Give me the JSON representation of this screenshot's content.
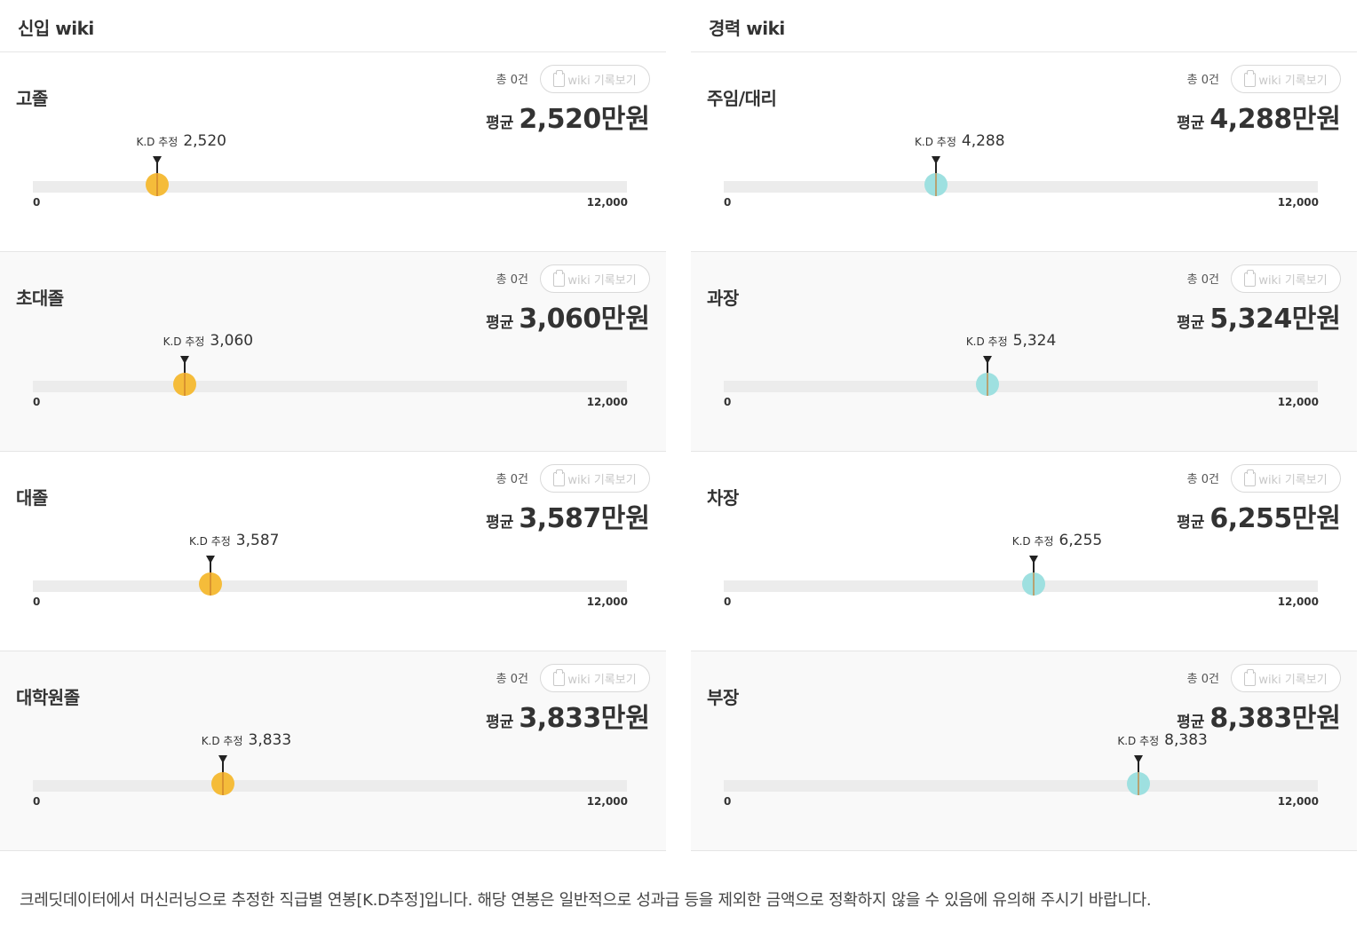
{
  "columns": [
    {
      "title": "신입 wiki",
      "dot_color": "#f5bc3a",
      "cards": [
        {
          "title": "고졸",
          "count": "총 0건",
          "button": "wiki 기록보기",
          "avg_label": "평균",
          "avg_value": "2,520",
          "avg_unit": "만원",
          "kd_label": "K.D 추정",
          "kd_value": "2,520",
          "kd_number": 2520,
          "scale_min": "0",
          "scale_max": "12,000"
        },
        {
          "title": "초대졸",
          "count": "총 0건",
          "button": "wiki 기록보기",
          "avg_label": "평균",
          "avg_value": "3,060",
          "avg_unit": "만원",
          "kd_label": "K.D 추정",
          "kd_value": "3,060",
          "kd_number": 3060,
          "scale_min": "0",
          "scale_max": "12,000"
        },
        {
          "title": "대졸",
          "count": "총 0건",
          "button": "wiki 기록보기",
          "avg_label": "평균",
          "avg_value": "3,587",
          "avg_unit": "만원",
          "kd_label": "K.D 추정",
          "kd_value": "3,587",
          "kd_number": 3587,
          "scale_min": "0",
          "scale_max": "12,000"
        },
        {
          "title": "대학원졸",
          "count": "총 0건",
          "button": "wiki 기록보기",
          "avg_label": "평균",
          "avg_value": "3,833",
          "avg_unit": "만원",
          "kd_label": "K.D 추정",
          "kd_value": "3,833",
          "kd_number": 3833,
          "scale_min": "0",
          "scale_max": "12,000"
        }
      ]
    },
    {
      "title": "경력 wiki",
      "dot_color": "#9ee0e0",
      "cards": [
        {
          "title": "주임/대리",
          "count": "총 0건",
          "button": "wiki 기록보기",
          "avg_label": "평균",
          "avg_value": "4,288",
          "avg_unit": "만원",
          "kd_label": "K.D 추정",
          "kd_value": "4,288",
          "kd_number": 4288,
          "scale_min": "0",
          "scale_max": "12,000"
        },
        {
          "title": "과장",
          "count": "총 0건",
          "button": "wiki 기록보기",
          "avg_label": "평균",
          "avg_value": "5,324",
          "avg_unit": "만원",
          "kd_label": "K.D 추정",
          "kd_value": "5,324",
          "kd_number": 5324,
          "scale_min": "0",
          "scale_max": "12,000"
        },
        {
          "title": "차장",
          "count": "총 0건",
          "button": "wiki 기록보기",
          "avg_label": "평균",
          "avg_value": "6,255",
          "avg_unit": "만원",
          "kd_label": "K.D 추정",
          "kd_value": "6,255",
          "kd_number": 6255,
          "scale_min": "0",
          "scale_max": "12,000"
        },
        {
          "title": "부장",
          "count": "총 0건",
          "button": "wiki 기록보기",
          "avg_label": "평균",
          "avg_value": "8,383",
          "avg_unit": "만원",
          "kd_label": "K.D 추정",
          "kd_value": "8,383",
          "kd_number": 8383,
          "scale_min": "0",
          "scale_max": "12,000"
        }
      ]
    }
  ],
  "scale_max_number": 12000,
  "footnote": "크레딧데이터에서 머신러닝으로 추정한 직급별 연봉[K.D추정]입니다. 해당 연봉은 일반적으로 성과급 등을 제외한 금액으로 정확하지 않을 수 있음에 유의해 주시기 바랍니다."
}
